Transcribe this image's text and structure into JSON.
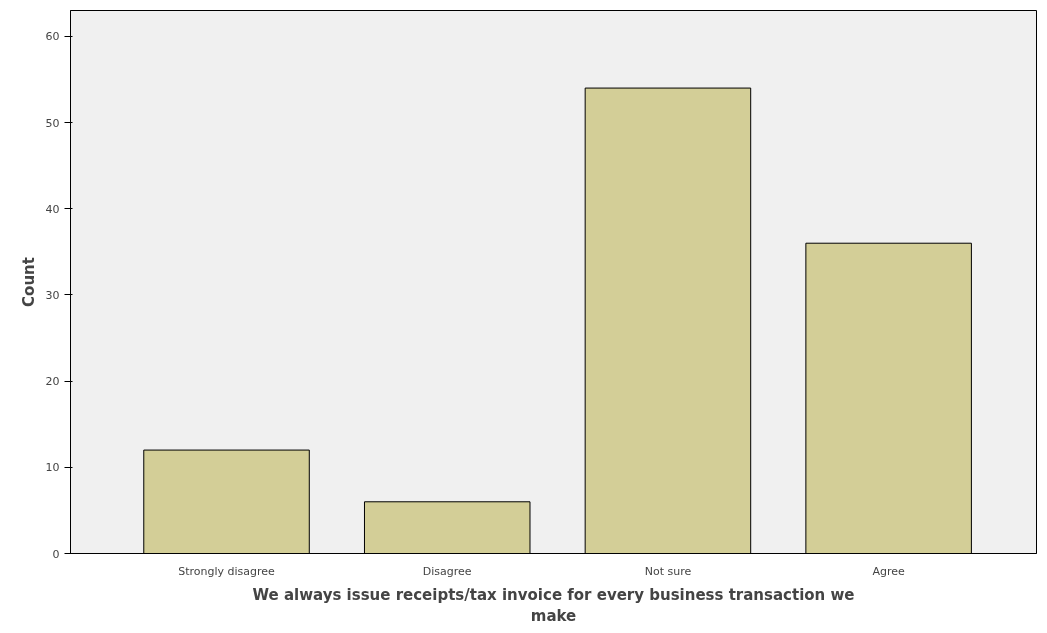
{
  "chart_data": {
    "type": "bar",
    "categories": [
      "Strongly disagree",
      "Disagree",
      "Not sure",
      "Agree"
    ],
    "values": [
      12,
      6,
      54,
      36
    ],
    "color": "#d3ce97",
    "xlabel": "We always issue receipts/tax invoice for every business transaction we make",
    "ylabel": "Count",
    "ylim": [
      0,
      63
    ],
    "yticks": [
      0,
      10,
      20,
      30,
      40,
      50,
      60
    ],
    "grid": false
  }
}
